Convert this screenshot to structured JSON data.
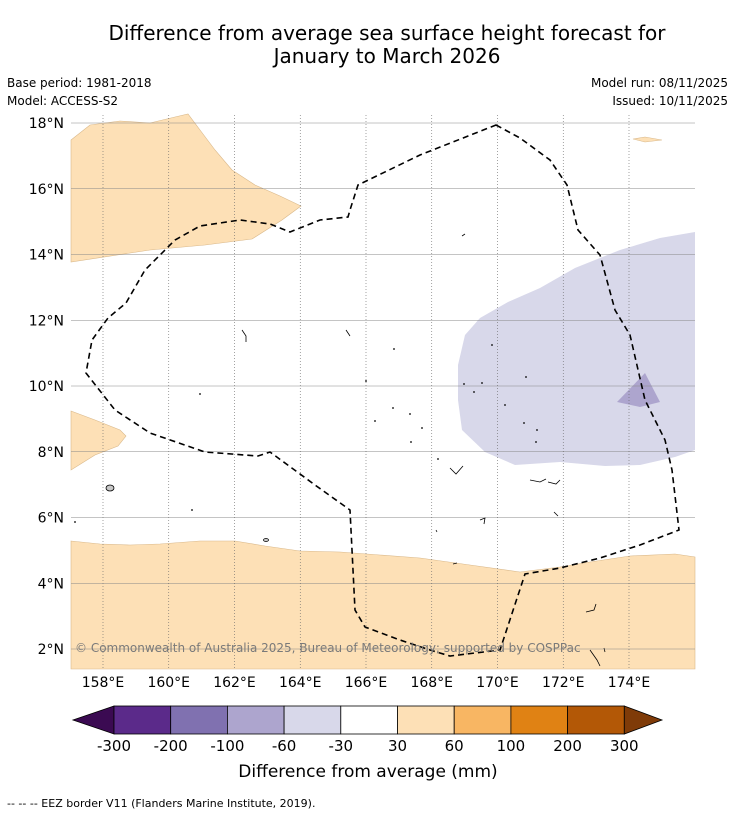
{
  "title_line1": "Difference from average sea surface height forecast for",
  "title_line2": "January to March 2026",
  "meta": {
    "base_period": "Base period: 1981-2018",
    "model": "Model: ACCESS-S2",
    "model_run": "Model run: 08/11/2025",
    "issued": "Issued: 10/11/2025"
  },
  "copyright": "© Commonwealth of Australia 2025, Bureau of Meteorology; supported by COSPPac",
  "lat_labels": [
    "2°N",
    "4°N",
    "6°N",
    "8°N",
    "10°N",
    "12°N",
    "14°N",
    "16°N",
    "18°N"
  ],
  "lon_labels": [
    "158°E",
    "160°E",
    "162°E",
    "164°E",
    "166°E",
    "168°E",
    "170°E",
    "172°E",
    "174°E"
  ],
  "colorbar": {
    "label": "Difference from average (mm)",
    "ticks": [
      "-300",
      "-200",
      "-100",
      "-60",
      "-30",
      "30",
      "60",
      "100",
      "200",
      "300"
    ],
    "colors": [
      "#3b0a52",
      "#5b2a8a",
      "#8071b0",
      "#ada5ce",
      "#d8d8ea",
      "#ffffff",
      "#fde0b6",
      "#f8b663",
      "#e08214",
      "#b35806",
      "#7f3b08"
    ]
  },
  "footnote": "-- -- -- EEZ border V11 (Flanders Marine Institute, 2019)."
}
